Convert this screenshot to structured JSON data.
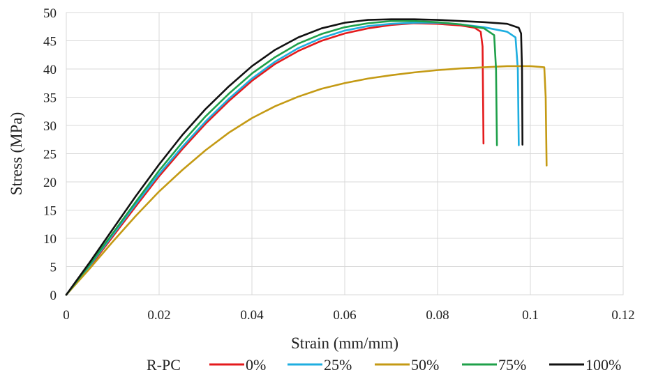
{
  "chart_data": {
    "type": "line",
    "title": "",
    "xlabel": "Strain (mm/mm)",
    "ylabel": "Stress (MPa)",
    "xlim": [
      0,
      0.12
    ],
    "ylim": [
      0,
      50
    ],
    "xticks": [
      0,
      0.02,
      0.04,
      0.06,
      0.08,
      0.1,
      0.12
    ],
    "yticks": [
      0,
      5,
      10,
      15,
      20,
      25,
      30,
      35,
      40,
      45,
      50
    ],
    "xtick_labels": [
      "0",
      "0.02",
      "0.04",
      "0.06",
      "0.08",
      "0.1",
      "0.12"
    ],
    "ytick_labels": [
      "0",
      "5",
      "10",
      "15",
      "20",
      "25",
      "30",
      "35",
      "40",
      "45",
      "50"
    ],
    "grid": true,
    "legend": {
      "title": "R-PC",
      "placement": "bottom"
    },
    "series": [
      {
        "name": "0%",
        "color": "#e41a1c",
        "points": [
          [
            0,
            0
          ],
          [
            0.005,
            4.9
          ],
          [
            0.01,
            10.3
          ],
          [
            0.015,
            15.7
          ],
          [
            0.02,
            21.0
          ],
          [
            0.025,
            25.8
          ],
          [
            0.03,
            30.3
          ],
          [
            0.035,
            34.3
          ],
          [
            0.04,
            37.9
          ],
          [
            0.045,
            40.9
          ],
          [
            0.05,
            43.2
          ],
          [
            0.055,
            45.0
          ],
          [
            0.06,
            46.3
          ],
          [
            0.065,
            47.2
          ],
          [
            0.07,
            47.8
          ],
          [
            0.075,
            48.1
          ],
          [
            0.08,
            48.0
          ],
          [
            0.085,
            47.7
          ],
          [
            0.088,
            47.3
          ],
          [
            0.0893,
            46.6
          ],
          [
            0.0897,
            44.0
          ],
          [
            0.0899,
            26.8
          ]
        ]
      },
      {
        "name": "25%",
        "color": "#1eaee0",
        "points": [
          [
            0,
            0
          ],
          [
            0.005,
            5.1
          ],
          [
            0.01,
            10.6
          ],
          [
            0.015,
            16.1
          ],
          [
            0.02,
            21.4
          ],
          [
            0.025,
            26.2
          ],
          [
            0.03,
            30.7
          ],
          [
            0.035,
            34.7
          ],
          [
            0.04,
            38.3
          ],
          [
            0.045,
            41.3
          ],
          [
            0.05,
            43.7
          ],
          [
            0.055,
            45.5
          ],
          [
            0.06,
            46.8
          ],
          [
            0.065,
            47.6
          ],
          [
            0.07,
            48.0
          ],
          [
            0.075,
            48.2
          ],
          [
            0.08,
            48.2
          ],
          [
            0.085,
            47.9
          ],
          [
            0.09,
            47.4
          ],
          [
            0.095,
            46.6
          ],
          [
            0.0968,
            45.6
          ],
          [
            0.0973,
            40.0
          ],
          [
            0.0975,
            26.5
          ]
        ]
      },
      {
        "name": "50%",
        "color": "#c49a14",
        "points": [
          [
            0,
            0
          ],
          [
            0.005,
            4.6
          ],
          [
            0.01,
            9.4
          ],
          [
            0.015,
            14.0
          ],
          [
            0.02,
            18.3
          ],
          [
            0.025,
            22.1
          ],
          [
            0.03,
            25.6
          ],
          [
            0.035,
            28.7
          ],
          [
            0.04,
            31.3
          ],
          [
            0.045,
            33.4
          ],
          [
            0.05,
            35.1
          ],
          [
            0.055,
            36.5
          ],
          [
            0.06,
            37.5
          ],
          [
            0.065,
            38.3
          ],
          [
            0.07,
            38.9
          ],
          [
            0.075,
            39.4
          ],
          [
            0.08,
            39.8
          ],
          [
            0.085,
            40.1
          ],
          [
            0.09,
            40.3
          ],
          [
            0.095,
            40.5
          ],
          [
            0.1,
            40.5
          ],
          [
            0.103,
            40.3
          ],
          [
            0.1033,
            35.0
          ],
          [
            0.1035,
            22.9
          ]
        ]
      },
      {
        "name": "75%",
        "color": "#1fa04a",
        "points": [
          [
            0,
            0
          ],
          [
            0.005,
            5.3
          ],
          [
            0.01,
            10.9
          ],
          [
            0.015,
            16.5
          ],
          [
            0.02,
            22.0
          ],
          [
            0.025,
            27.0
          ],
          [
            0.03,
            31.6
          ],
          [
            0.035,
            35.6
          ],
          [
            0.04,
            39.2
          ],
          [
            0.045,
            42.1
          ],
          [
            0.05,
            44.5
          ],
          [
            0.055,
            46.2
          ],
          [
            0.06,
            47.4
          ],
          [
            0.065,
            48.1
          ],
          [
            0.07,
            48.5
          ],
          [
            0.075,
            48.5
          ],
          [
            0.08,
            48.3
          ],
          [
            0.085,
            47.9
          ],
          [
            0.09,
            47.2
          ],
          [
            0.0922,
            46.0
          ],
          [
            0.0926,
            40.0
          ],
          [
            0.0928,
            26.5
          ]
        ]
      },
      {
        "name": "100%",
        "color": "#111111",
        "points": [
          [
            0,
            0
          ],
          [
            0.005,
            5.7
          ],
          [
            0.01,
            11.6
          ],
          [
            0.015,
            17.5
          ],
          [
            0.02,
            23.1
          ],
          [
            0.025,
            28.3
          ],
          [
            0.03,
            32.9
          ],
          [
            0.035,
            36.9
          ],
          [
            0.04,
            40.5
          ],
          [
            0.045,
            43.4
          ],
          [
            0.05,
            45.6
          ],
          [
            0.055,
            47.2
          ],
          [
            0.06,
            48.2
          ],
          [
            0.065,
            48.7
          ],
          [
            0.07,
            48.8
          ],
          [
            0.075,
            48.8
          ],
          [
            0.08,
            48.7
          ],
          [
            0.085,
            48.5
          ],
          [
            0.09,
            48.3
          ],
          [
            0.095,
            48.0
          ],
          [
            0.0975,
            47.3
          ],
          [
            0.098,
            46.3
          ],
          [
            0.0982,
            40.0
          ],
          [
            0.0983,
            26.6
          ]
        ]
      }
    ]
  }
}
